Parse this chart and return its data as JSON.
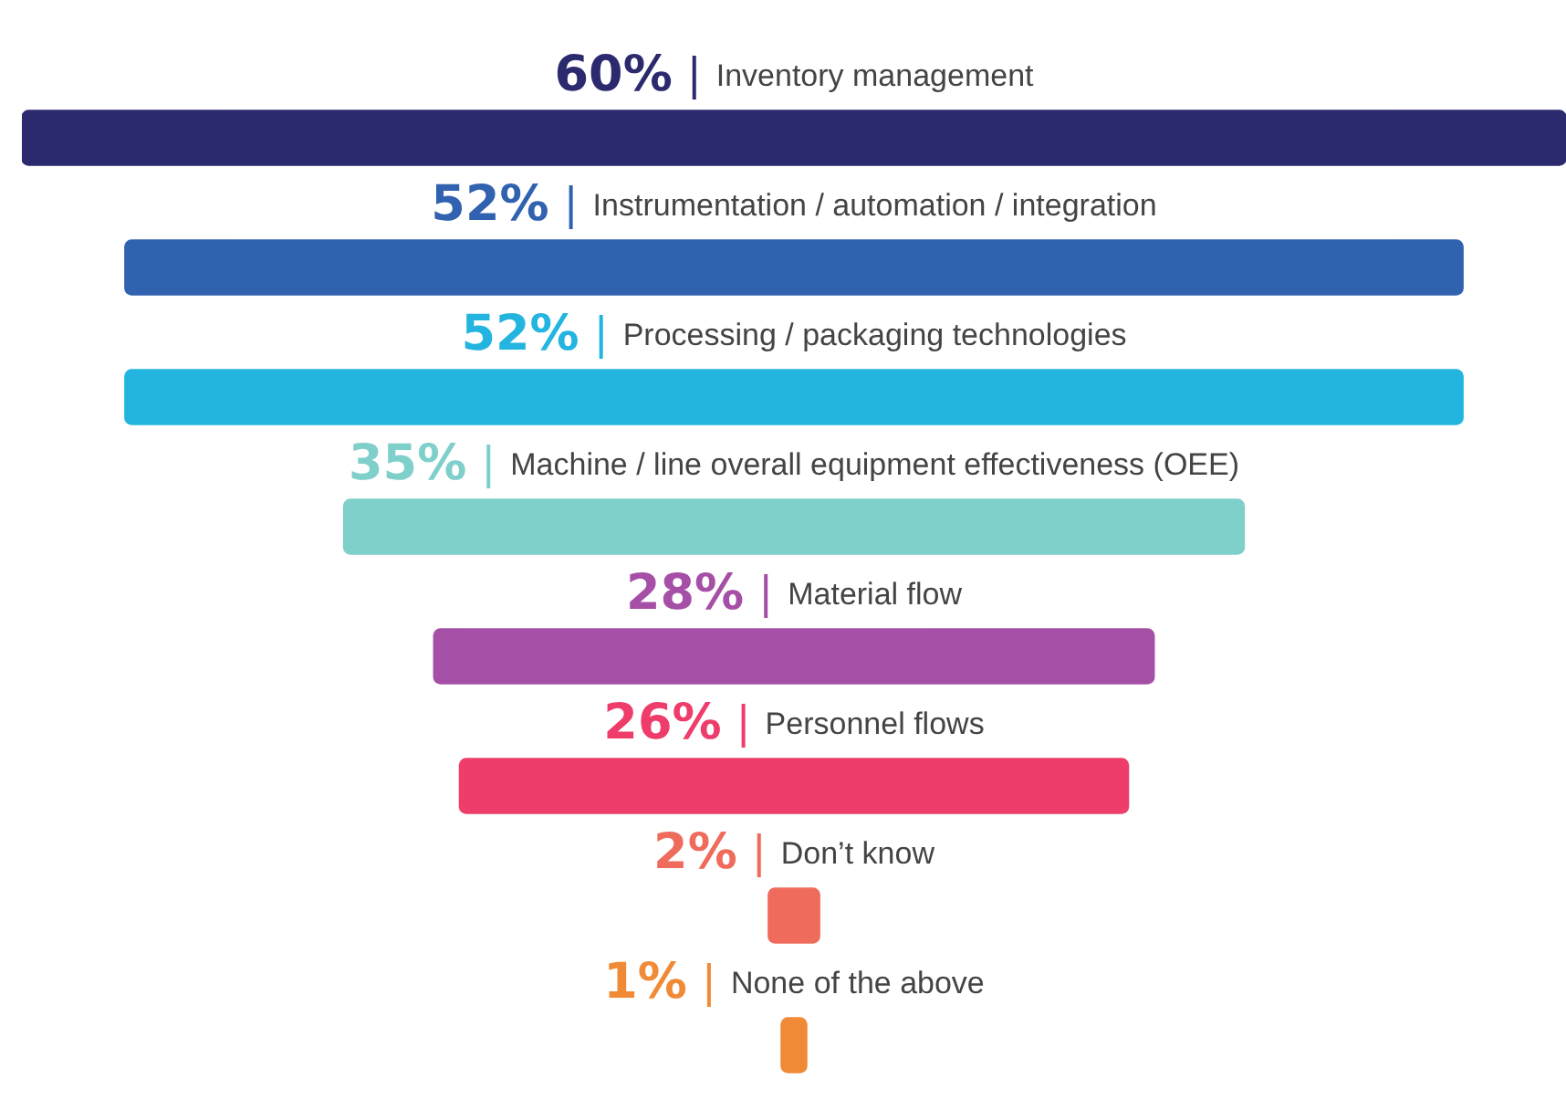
{
  "chart_data": {
    "type": "other",
    "categories": [
      "Inventory management",
      "Instrumentation / automation / integration",
      "Processing / packaging technologies",
      "Machine / line overall equipment effectiveness (OEE)",
      "Material flow",
      "Personnel flows",
      "Don’t know",
      "None of the above"
    ],
    "values": [
      60,
      52,
      52,
      35,
      28,
      26,
      2,
      1
    ],
    "value_labels": [
      "60%",
      "52%",
      "52%",
      "35%",
      "28%",
      "26%",
      "2%",
      "1%"
    ],
    "colors": [
      "#2b2a6e",
      "#3062b0",
      "#23b5e0",
      "#7fcfca",
      "#a54fa6",
      "#ee3d6a",
      "#ef6b5b",
      "#f18a36"
    ],
    "legend": false
  }
}
